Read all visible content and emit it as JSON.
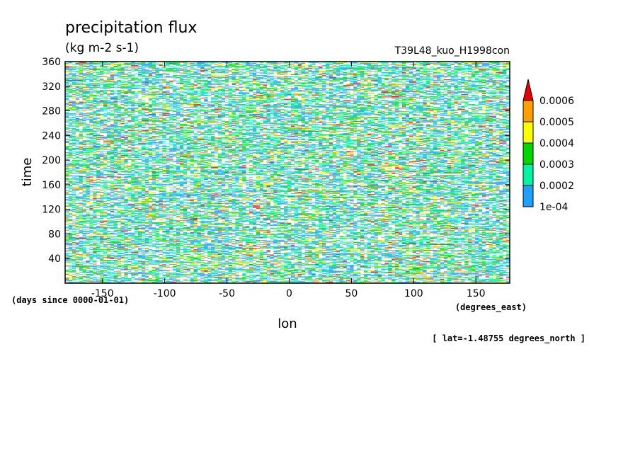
{
  "chart_data": {
    "type": "heatmap",
    "title": "precipitation flux",
    "units": "(kg m-2 s-1)",
    "run_label": "T39L48_kuo_H1998con",
    "xlabel": "lon",
    "x_units": "(degrees_east)",
    "ylabel": "time",
    "y_units": "(days since 0000-01-01)",
    "footnote": "[ lat=-1.48755 degrees_north ]",
    "xlim": [
      -180,
      177.1875
    ],
    "ylim": [
      0,
      360
    ],
    "x_ticks": [
      -150,
      -100,
      -50,
      0,
      50,
      100,
      150
    ],
    "x_tick_labels": [
      "-150",
      "-100",
      "-50",
      "0",
      "50",
      "100",
      "150"
    ],
    "y_ticks": [
      40,
      80,
      120,
      160,
      200,
      240,
      280,
      320,
      360
    ],
    "y_tick_labels": [
      "40",
      "80",
      "120",
      "160",
      "200",
      "240",
      "280",
      "320",
      "360"
    ],
    "colorbar": {
      "levels": [
        0.0001,
        0.0002,
        0.0003,
        0.0004,
        0.0005,
        0.0006
      ],
      "level_labels": [
        "1e-04",
        "0.0002",
        "0.0003",
        "0.0004",
        "0.0005",
        "0.0006"
      ],
      "colors": [
        "#1ea0ff",
        "#00f5a0",
        "#00d800",
        "#ffff00",
        "#ffa000",
        "#e60000"
      ],
      "extend": "max"
    }
  }
}
